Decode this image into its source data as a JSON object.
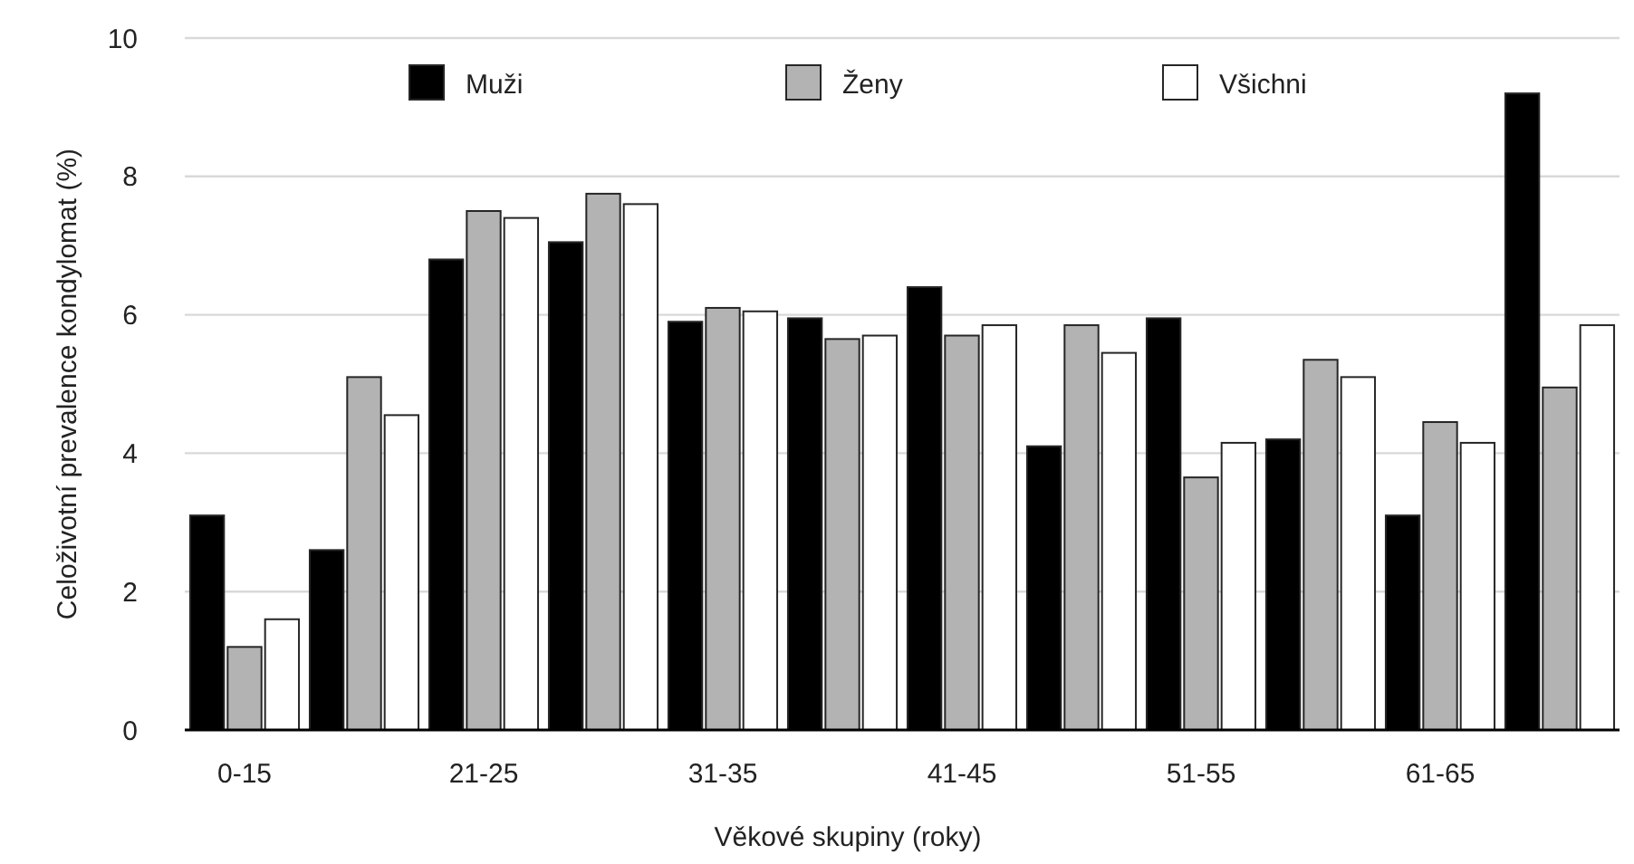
{
  "chart_data": {
    "type": "bar",
    "xlabel": "Věkové skupiny (roky)",
    "ylabel": "Celoživotní prevalence kondylomat (%)",
    "categories": [
      "0-15",
      null,
      "21-25",
      null,
      "31-35",
      null,
      "41-45",
      null,
      "51-55",
      null,
      "61-65",
      null
    ],
    "series": [
      {
        "name": "Muži",
        "color": "#000000",
        "values": [
          3.1,
          2.6,
          6.8,
          7.05,
          5.9,
          5.95,
          6.4,
          4.1,
          5.95,
          4.2,
          3.1,
          9.2
        ]
      },
      {
        "name": "Ženy",
        "color": "#b3b3b3",
        "values": [
          1.2,
          5.1,
          7.5,
          7.75,
          6.1,
          5.65,
          5.7,
          5.85,
          3.65,
          5.35,
          4.45,
          4.95
        ]
      },
      {
        "name": "Všichni",
        "color": "#ffffff",
        "values": [
          1.6,
          4.55,
          7.4,
          7.6,
          6.05,
          5.7,
          5.85,
          5.45,
          4.15,
          5.1,
          4.15,
          5.85
        ]
      }
    ],
    "ylim": [
      0,
      10
    ],
    "yticks": [
      0,
      2,
      4,
      6,
      8,
      10
    ],
    "grid": "y",
    "legend": "top"
  }
}
